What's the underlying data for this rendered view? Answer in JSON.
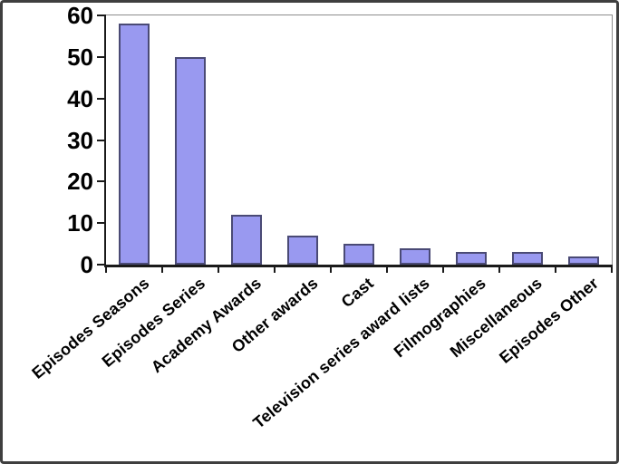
{
  "chart_data": {
    "type": "bar",
    "categories": [
      "Episodes Seasons",
      "Episodes Series",
      "Academy Awards",
      "Other awards",
      "Cast",
      "Television series award lists",
      "Filmographies",
      "Miscellaneous",
      "Episodes Other"
    ],
    "values": [
      58,
      50,
      12,
      7,
      5,
      4,
      3,
      3,
      2
    ],
    "ylim": [
      0,
      60
    ],
    "yticks": [
      0,
      10,
      20,
      30,
      40,
      50,
      60
    ],
    "grid": false,
    "legend": "none",
    "x_label_rotation_deg": -40,
    "colors": {
      "bar_fill": "#9999F0",
      "bar_border": "#4A4A75",
      "axis": "#1A1A1A",
      "plot_frame": "#8C8C8C",
      "text": "#000000",
      "background": "#FFFFFF",
      "outer_border": "#3F3F3F"
    }
  }
}
